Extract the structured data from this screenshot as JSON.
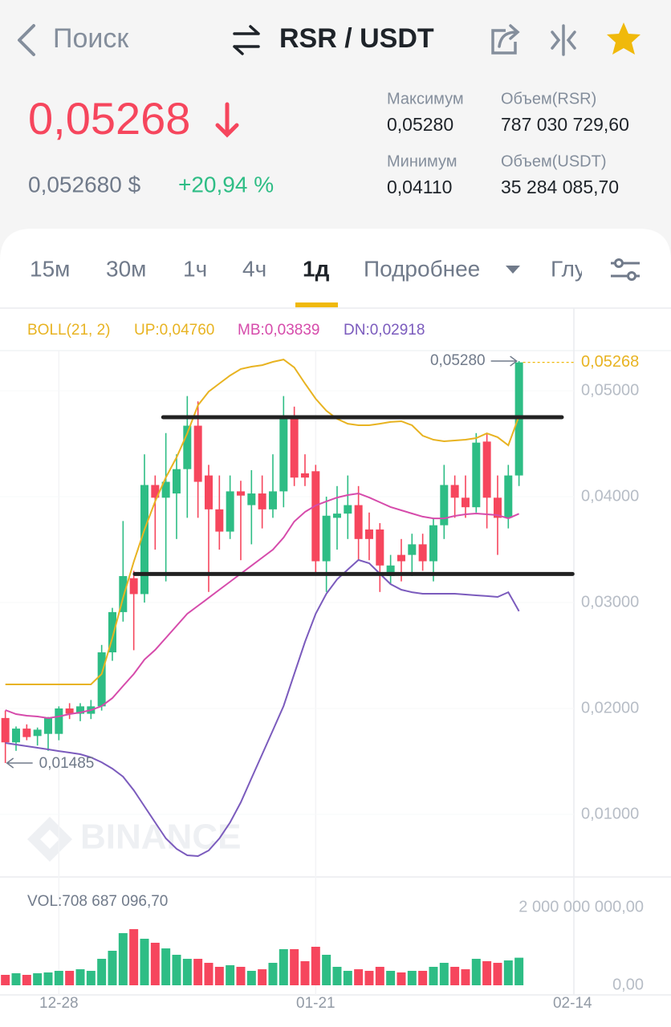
{
  "header": {
    "back": "Поиск",
    "pair": "RSR / USDT",
    "price": "0,05268",
    "price_usd": "0,052680 $",
    "change": "+20,94 %",
    "stats": [
      {
        "label": "Максимум",
        "value": "0,05280"
      },
      {
        "label": "Объем(RSR)",
        "value": "787 030 729,60"
      },
      {
        "label": "Минимум",
        "value": "0,04110"
      },
      {
        "label": "Объем(USDT)",
        "value": "35 284 085,70"
      }
    ]
  },
  "tabs": [
    "15м",
    "30м",
    "1ч",
    "4ч",
    "1д",
    "Подробнее",
    "Глу"
  ],
  "active_tab": 4,
  "watermark": "BINANCE",
  "chart_data": {
    "type": "candlestick",
    "legend_title": "BOLL(21, 2)",
    "x": [
      -5,
      -4,
      -3,
      -2,
      -1,
      0,
      1,
      2,
      3,
      4,
      5,
      6,
      7,
      8,
      9,
      10,
      11,
      12,
      13,
      14,
      15,
      16,
      17,
      18,
      19,
      20,
      21,
      22,
      23,
      24,
      25,
      26,
      27,
      28,
      29,
      30,
      31,
      32,
      33,
      34,
      35,
      36,
      37,
      38,
      39,
      40,
      41,
      42,
      43
    ],
    "open": [
      0.0191,
      0.0168,
      0.0181,
      0.0174,
      0.0176,
      0.0176,
      0.02,
      0.0195,
      0.0195,
      0.0202,
      0.0253,
      0.0291,
      0.0323,
      0.0308,
      0.0411,
      0.0399,
      0.0403,
      0.0426,
      0.0467,
      0.042,
      0.0388,
      0.0367,
      0.0405,
      0.0392,
      0.0403,
      0.0388,
      0.0405,
      0.0475,
      0.0422,
      0.0424,
      0.0339,
      0.038,
      0.0384,
      0.0392,
      0.0369,
      0.0369,
      0.0325,
      0.0345,
      0.0345,
      0.0355,
      0.0339,
      0.0373,
      0.0411,
      0.0399,
      0.039,
      0.0452,
      0.0399,
      0.038,
      0.042
    ],
    "high": [
      0.0198,
      0.0183,
      0.0185,
      0.0182,
      0.0192,
      0.0202,
      0.0205,
      0.0205,
      0.0208,
      0.026,
      0.0295,
      0.0377,
      0.033,
      0.044,
      0.042,
      0.046,
      0.044,
      0.0495,
      0.049,
      0.043,
      0.042,
      0.042,
      0.0415,
      0.0425,
      0.042,
      0.044,
      0.0495,
      0.0485,
      0.044,
      0.043,
      0.04,
      0.041,
      0.042,
      0.041,
      0.0385,
      0.0375,
      0.0345,
      0.036,
      0.0365,
      0.0365,
      0.038,
      0.043,
      0.042,
      0.042,
      0.046,
      0.046,
      0.042,
      0.043,
      0.0528
    ],
    "low": [
      0.01485,
      0.016,
      0.017,
      0.0165,
      0.016,
      0.017,
      0.019,
      0.0188,
      0.019,
      0.0198,
      0.0245,
      0.0282,
      0.0255,
      0.03,
      0.035,
      0.032,
      0.036,
      0.038,
      0.038,
      0.031,
      0.035,
      0.036,
      0.034,
      0.0355,
      0.037,
      0.038,
      0.039,
      0.041,
      0.041,
      0.0327,
      0.031,
      0.035,
      0.036,
      0.034,
      0.034,
      0.031,
      0.0318,
      0.032,
      0.0325,
      0.033,
      0.032,
      0.036,
      0.038,
      0.038,
      0.0385,
      0.037,
      0.0345,
      0.037,
      0.041
    ],
    "close": [
      0.0168,
      0.0181,
      0.0173,
      0.018,
      0.0191,
      0.02,
      0.0195,
      0.0202,
      0.0202,
      0.0253,
      0.0291,
      0.0325,
      0.0308,
      0.0411,
      0.0399,
      0.0414,
      0.0426,
      0.0467,
      0.0414,
      0.0388,
      0.0367,
      0.0405,
      0.0401,
      0.0403,
      0.0388,
      0.0405,
      0.0475,
      0.0418,
      0.0418,
      0.0339,
      0.0382,
      0.0384,
      0.0392,
      0.036,
      0.036,
      0.0335,
      0.0335,
      0.0339,
      0.0355,
      0.0339,
      0.0373,
      0.0411,
      0.0399,
      0.039,
      0.0451,
      0.0399,
      0.038,
      0.042,
      0.05268
    ],
    "up_color": "#2ebd85",
    "down_color": "#f6465d",
    "bollinger": [
      {
        "name": "UP",
        "legend": "UP:0,04760",
        "color": "#e8b321",
        "values": [
          0.02227,
          0.02227,
          0.02227,
          0.02227,
          0.02227,
          0.02227,
          0.02227,
          0.02227,
          0.02227,
          0.02326,
          0.02667,
          0.03045,
          0.03386,
          0.03689,
          0.03955,
          0.04182,
          0.04371,
          0.04598,
          0.04864,
          0.04992,
          0.05068,
          0.05144,
          0.05205,
          0.05227,
          0.05242,
          0.05273,
          0.05295,
          0.0522,
          0.05068,
          0.04924,
          0.04811,
          0.04735,
          0.04689,
          0.04674,
          0.04674,
          0.04689,
          0.04705,
          0.04712,
          0.04674,
          0.04576,
          0.04538,
          0.04523,
          0.0453,
          0.04538,
          0.04553,
          0.04598,
          0.04561,
          0.04485,
          0.0476
        ]
      },
      {
        "name": "MB",
        "legend": "MB:0,03839",
        "color": "#d64bab",
        "values": [
          0.01985,
          0.01947,
          0.01932,
          0.01924,
          0.01909,
          0.01924,
          0.01947,
          0.01962,
          0.01985,
          0.02023,
          0.02098,
          0.02212,
          0.02326,
          0.02462,
          0.02553,
          0.02667,
          0.0278,
          0.02894,
          0.0297,
          0.03045,
          0.03121,
          0.03197,
          0.03273,
          0.03348,
          0.03424,
          0.035,
          0.03614,
          0.03765,
          0.03856,
          0.03917,
          0.03955,
          0.03992,
          0.04015,
          0.0403,
          0.03992,
          0.03947,
          0.03902,
          0.03871,
          0.03841,
          0.03811,
          0.03795,
          0.03795,
          0.03818,
          0.03833,
          0.03841,
          0.03833,
          0.03826,
          0.03795,
          0.03839
        ]
      },
      {
        "name": "DN",
        "legend": "DN:0,02918",
        "color": "#7b5bbd",
        "values": [
          0.01674,
          0.01659,
          0.01644,
          0.01629,
          0.01614,
          0.01598,
          0.01583,
          0.01568,
          0.01538,
          0.01492,
          0.01432,
          0.01356,
          0.01227,
          0.01076,
          0.00924,
          0.00773,
          0.00674,
          0.00614,
          0.00606,
          0.00659,
          0.00773,
          0.00924,
          0.01114,
          0.01341,
          0.01568,
          0.01795,
          0.02023,
          0.02326,
          0.02629,
          0.02894,
          0.03083,
          0.0322,
          0.03311,
          0.03402,
          0.03371,
          0.03273,
          0.03174,
          0.03121,
          0.03098,
          0.03083,
          0.03083,
          0.03083,
          0.03083,
          0.03076,
          0.03068,
          0.03061,
          0.03053,
          0.03098,
          0.02918
        ]
      }
    ],
    "trend_lines": [
      {
        "x": [
          9.75,
          47
        ],
        "value": 0.0475
      },
      {
        "x": [
          7.1,
          48
        ],
        "value": 0.0327
      }
    ],
    "max_label": {
      "value": 0.0528,
      "label": "0,05280"
    },
    "min_label": {
      "value": 0.01485,
      "label": "0,01485"
    },
    "last_price": {
      "value": 0.05268,
      "label": "0,05268"
    },
    "xlim": [
      -5.5,
      48
    ],
    "xticks": [
      {
        "value": 0,
        "label": "12-28"
      },
      {
        "value": 24,
        "label": "01-21"
      },
      {
        "value": 48,
        "label": "02-14"
      }
    ],
    "ylim": [
      0.004,
      0.054
    ],
    "yticks": [
      {
        "value": 0.01,
        "label": "0,01000"
      },
      {
        "value": 0.02,
        "label": "0,02000"
      },
      {
        "value": 0.03,
        "label": "0,03000"
      },
      {
        "value": 0.04,
        "label": "0,04000"
      },
      {
        "value": 0.05,
        "label": "0,05000"
      }
    ],
    "volume_label": "VOL:708 687 096,70",
    "volume": [
      268000000,
      309000000,
      268000000,
      309000000,
      330000000,
      371000000,
      371000000,
      412000000,
      371000000,
      680000000,
      887000000,
      1340000000,
      1443000000,
      1196000000,
      1093000000,
      948000000,
      784000000,
      680000000,
      680000000,
      577000000,
      474000000,
      515000000,
      474000000,
      371000000,
      412000000,
      577000000,
      928000000,
      928000000,
      619000000,
      990000000,
      784000000,
      474000000,
      371000000,
      412000000,
      371000000,
      474000000,
      371000000,
      330000000,
      371000000,
      371000000,
      474000000,
      577000000,
      474000000,
      412000000,
      680000000,
      619000000,
      577000000,
      639000000,
      708687096.7
    ],
    "volume_ylim": [
      0,
      2640000000
    ],
    "volume_yticks": [
      {
        "value": 0,
        "label": "0,00"
      },
      {
        "value": 2000000000,
        "label": "2 000 000 000,00"
      }
    ]
  }
}
